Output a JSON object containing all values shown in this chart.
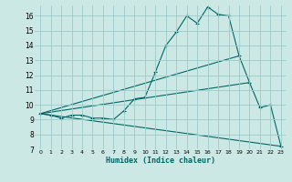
{
  "title": "",
  "xlabel": "Humidex (Indice chaleur)",
  "bg_color": "#cce8e4",
  "grid_color": "#99cccc",
  "line_color": "#006666",
  "xlim": [
    -0.5,
    23.5
  ],
  "ylim": [
    7,
    16.7
  ],
  "yticks": [
    7,
    8,
    9,
    10,
    11,
    12,
    13,
    14,
    15,
    16
  ],
  "xticks": [
    0,
    1,
    2,
    3,
    4,
    5,
    6,
    7,
    8,
    9,
    10,
    11,
    12,
    13,
    14,
    15,
    16,
    17,
    18,
    19,
    20,
    21,
    22,
    23
  ],
  "series_main": {
    "x": [
      0,
      1,
      2,
      3,
      4,
      5,
      6,
      7,
      8,
      9,
      10,
      11,
      12,
      13,
      14,
      15,
      16,
      17,
      18,
      19,
      20,
      21,
      22,
      23
    ],
    "y": [
      9.4,
      9.3,
      9.1,
      9.3,
      9.3,
      9.1,
      9.1,
      9.0,
      9.6,
      10.4,
      10.5,
      12.2,
      14.0,
      14.9,
      16.0,
      15.5,
      16.6,
      16.1,
      16.0,
      13.3,
      11.5,
      9.8,
      10.0,
      7.2
    ]
  },
  "line1": {
    "x": [
      0,
      19
    ],
    "y": [
      9.4,
      13.3
    ]
  },
  "line2": {
    "x": [
      0,
      20
    ],
    "y": [
      9.4,
      11.5
    ]
  },
  "line3": {
    "x": [
      0,
      23
    ],
    "y": [
      9.4,
      7.2
    ]
  }
}
